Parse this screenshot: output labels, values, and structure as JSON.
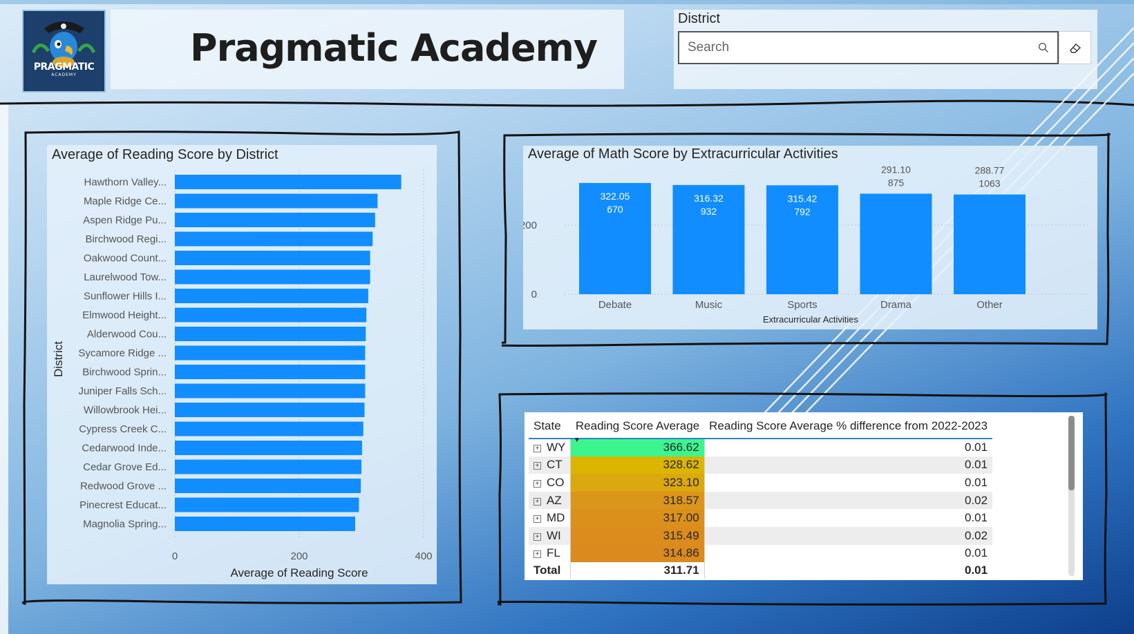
{
  "header": {
    "logo_text": "PRAGMATIC",
    "logo_subtext": "ACADEMY",
    "title": "Pragmatic Academy"
  },
  "slicer": {
    "label": "District",
    "placeholder": "Search"
  },
  "colors": {
    "bar": "#118dff",
    "heat_top": "#3df58f",
    "heat_mid": "#dbb500",
    "heat_low": "#db8a1e"
  },
  "chart_data": [
    {
      "type": "bar",
      "orientation": "horizontal",
      "title": "Average of Reading Score by District",
      "xlabel": "Average of Reading Score",
      "ylabel": "District",
      "xlim": [
        0,
        400
      ],
      "xticks": [
        "0",
        "200",
        "400"
      ],
      "grid": true,
      "categories": [
        "Hawthorn Valley...",
        "Maple Ridge Ce...",
        "Aspen Ridge Pu...",
        "Birchwood Regi...",
        "Oakwood Count...",
        "Laurelwood Tow...",
        "Sunflower Hills I...",
        "Elmwood Height...",
        "Alderwood Cou...",
        "Sycamore Ridge ...",
        "Birchwood Sprin...",
        "Juniper Falls Sch...",
        "Willowbrook Hei...",
        "Cypress Creek C...",
        "Cedarwood Inde...",
        "Cedar Grove Ed...",
        "Redwood Grove ...",
        "Pinecrest Educat...",
        "Magnolia Spring..."
      ],
      "values": [
        364,
        326,
        322,
        318,
        314,
        314,
        311,
        308,
        307,
        306,
        306,
        306,
        305,
        303,
        301,
        300,
        299,
        296,
        290
      ]
    },
    {
      "type": "bar",
      "title": "Average of Math Score by Extracurricular Activities",
      "xlabel": "Extracurricular Activities",
      "ylabel": "Average of Math Score",
      "ylim": [
        0,
        350
      ],
      "yticks": [
        "0",
        "200"
      ],
      "grid": true,
      "categories": [
        "Debate",
        "Music",
        "Sports",
        "Drama",
        "Other"
      ],
      "values": [
        322.05,
        316.32,
        315.42,
        291.1,
        288.77
      ],
      "value_labels": [
        "322.05",
        "316.32",
        "315.42",
        "291.10",
        "288.77"
      ],
      "counts": [
        "670",
        "932",
        "792",
        "875",
        "1063"
      ]
    },
    {
      "type": "table",
      "columns": [
        "State",
        "Reading Score Average",
        "Reading Score Average % difference from 2022-2023"
      ],
      "rows": [
        {
          "state": "WY",
          "avg": "366.62",
          "diff": "0.01",
          "color": "#3df58f"
        },
        {
          "state": "CT",
          "avg": "328.62",
          "diff": "0.01",
          "color": "#dbb500"
        },
        {
          "state": "CO",
          "avg": "323.10",
          "diff": "0.01",
          "color": "#dba80e"
        },
        {
          "state": "AZ",
          "avg": "318.57",
          "diff": "0.02",
          "color": "#db951a"
        },
        {
          "state": "MD",
          "avg": "317.00",
          "diff": "0.01",
          "color": "#db901c"
        },
        {
          "state": "WI",
          "avg": "315.49",
          "diff": "0.02",
          "color": "#db8c1d"
        },
        {
          "state": "FL",
          "avg": "314.86",
          "diff": "0.01",
          "color": "#db8a1e"
        }
      ],
      "total": {
        "label": "Total",
        "avg": "311.71",
        "diff": "0.01"
      }
    }
  ]
}
